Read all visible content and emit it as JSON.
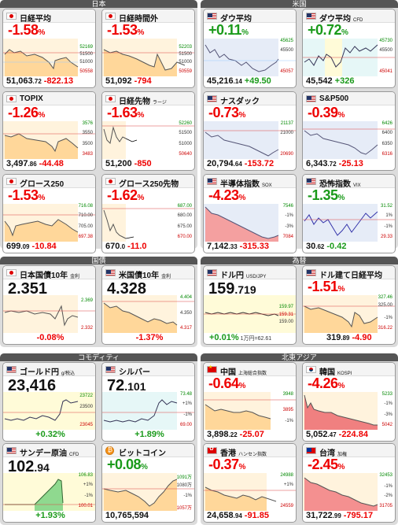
{
  "sections": [
    {
      "id": "japan",
      "title": "日本"
    },
    {
      "id": "us",
      "title": "米国"
    },
    {
      "id": "bonds",
      "title": "国債"
    },
    {
      "id": "fx",
      "title": "為替"
    },
    {
      "id": "commodity",
      "title": "コモディティ"
    },
    {
      "id": "asia",
      "title": "北東アジア"
    }
  ],
  "cards": {
    "nikkei": {
      "name": "日経平均",
      "pct": "-1.58",
      "level": "51,063",
      "level_dec": ".72",
      "change": "-822.13",
      "ax": [
        "52169",
        "51500",
        "51000",
        "50558"
      ]
    },
    "nikkei_ext": {
      "name": "日経時間外",
      "pct": "-1.53",
      "level": "51,092",
      "level_dec": "",
      "change": "-794",
      "ax": [
        "52203",
        "51500",
        "51000",
        "50559"
      ]
    },
    "dow": {
      "name": "ダウ平均",
      "pct": "+0.11",
      "level": "45,216",
      "level_dec": ".14",
      "change": "+49.50",
      "ax": [
        "45625",
        "45500",
        "45057"
      ]
    },
    "dow_cfd": {
      "name": "ダウ平均",
      "sub": "CFD",
      "pct": "+0.72",
      "level": "45,542",
      "level_dec": "",
      "change": "+326",
      "ax": [
        "45730",
        "45500",
        "45041"
      ]
    },
    "topix": {
      "name": "TOPIX",
      "pct": "-1.26",
      "level": "3,497",
      "level_dec": ".86",
      "change": "-44.48",
      "ax": [
        "3576",
        "3550",
        "3500",
        "3483"
      ]
    },
    "nikkei_fut": {
      "name": "日経先物",
      "sub": "ラージ",
      "pct": "-1.63",
      "level": "51,200",
      "level_dec": "",
      "change": "-850",
      "ax": [
        "52260",
        "51500",
        "51000",
        "50640"
      ]
    },
    "nasdaq": {
      "name": "ナスダック",
      "pct": "-0.73",
      "level": "20,794",
      "level_dec": ".64",
      "change": "-153.72",
      "ax": [
        "21137",
        "21000",
        "20690"
      ]
    },
    "sp500": {
      "name": "S&P500",
      "pct": "-0.39",
      "level": "6,343",
      "level_dec": ".72",
      "change": "-25.13",
      "ax": [
        "6426",
        "6400",
        "6350",
        "6316"
      ]
    },
    "growth250": {
      "name": "グロース250",
      "pct": "-1.53",
      "level": "699",
      "level_dec": ".09",
      "change": "-10.84",
      "ax": [
        "716.08",
        "710.00",
        "705.00",
        "697.38"
      ]
    },
    "growth250_fut": {
      "name": "グロース250先物",
      "pct": "-1.62",
      "level": "670",
      "level_dec": ".0",
      "change": "-11.0",
      "ax": [
        "687.00",
        "680.00",
        "675.00",
        "670.00"
      ]
    },
    "sox": {
      "name": "半導体指数",
      "sub": "SOX",
      "pct": "-4.23",
      "level": "7,142",
      "level_dec": ".33",
      "change": "-315.33",
      "ax": [
        "7546",
        "-1%",
        "-3%",
        "7084"
      ]
    },
    "vix": {
      "name": "恐怖指数",
      "sub": "VIX",
      "pct": "-1.35",
      "level": "30",
      "level_dec": ".62",
      "change": "-0.42",
      "ax": [
        "31.52",
        "1%",
        "-1%",
        "29.33"
      ]
    },
    "jgb10": {
      "name": "日本国債10年",
      "sub": "金利",
      "level": "2.351",
      "change": "-0.08%",
      "ax": [
        "2.369",
        "2.332"
      ]
    },
    "ust10": {
      "name": "米国債10年",
      "sub": "金利",
      "level": "4.328",
      "change": "-1.37%",
      "ax": [
        "4.404",
        "4.350",
        "4.317"
      ]
    },
    "usdjpy": {
      "name": "ドル円",
      "sub": "USD/JPY",
      "level": "159",
      "level_dec": ".719",
      "change": "+0.01%",
      "extra": "1万円=62.61",
      "ax": [
        "159.97",
        "159.31",
        "159.00"
      ]
    },
    "nikkei_usd": {
      "name": "ドル建て日経平均",
      "pct": "-1.51",
      "level": "319",
      "level_dec": ".89",
      "change": "-4.90",
      "ax": [
        "327.46",
        "325.00",
        "-1%",
        "316.22"
      ]
    },
    "gold": {
      "name": "ゴールド円",
      "sub": "g/税込",
      "level": "23,416",
      "change": "+0.32%",
      "ax": [
        "23722",
        "23500",
        "23045"
      ]
    },
    "silver": {
      "name": "シルバー",
      "level": "72",
      "level_dec": ".101",
      "change": "+1.89%",
      "ax": [
        "73.48",
        "+1%",
        "-1%",
        "69.00"
      ]
    },
    "china": {
      "name": "中国",
      "sub": "上海総合指数",
      "pct": "-0.64",
      "level": "3,898",
      "level_dec": ".22",
      "change": "-25.07",
      "ax": [
        "3948",
        "3895",
        "-1%"
      ]
    },
    "korea": {
      "name": "韓国",
      "sub": "KOSPI",
      "pct": "-4.26",
      "level": "5,052",
      "level_dec": ".47",
      "change": "-224.84",
      "ax": [
        "5233",
        "-1%",
        "-3%",
        "5042"
      ]
    },
    "oil": {
      "name": "サンデー原油",
      "sub": "CFD",
      "level": "102",
      "level_dec": ".94",
      "change": "+1.93%",
      "ax": [
        "106.83",
        "+1%",
        "-1%",
        "100.01"
      ]
    },
    "btc": {
      "name": "ビットコイン",
      "pct": "+0.08",
      "level": "10,765,594",
      "change": "",
      "ax": [
        "1091万",
        "1080万",
        "-1%",
        "1057万"
      ]
    },
    "hk": {
      "name": "香港",
      "sub": "ハンセン指数",
      "pct": "-0.37",
      "level": "24,658",
      "level_dec": ".94",
      "change": "-91.85",
      "ax": [
        "24988",
        "+1%",
        "24559"
      ]
    },
    "taiwan": {
      "name": "台湾",
      "sub": "加権",
      "pct": "-2.45",
      "level": "31,722",
      "level_dec": ".99",
      "change": "-795.17",
      "ax": [
        "32453",
        "-1%",
        "-2%",
        "31705"
      ]
    }
  },
  "pct_unit": "%"
}
